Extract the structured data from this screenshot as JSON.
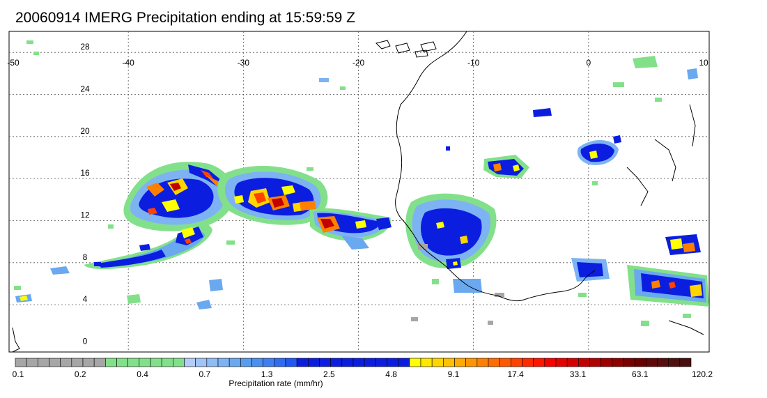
{
  "title": "20060914 IMERG Precipitation ending at 15:59:59 Z",
  "map": {
    "lon_range": [
      -50,
      10
    ],
    "lat_range": [
      -0.5,
      30
    ],
    "lon_ticks": [
      -50,
      -40,
      -30,
      -20,
      -10,
      0,
      10
    ],
    "lon_tick_labels": [
      "-50",
      "-40",
      "-30",
      "-20",
      "-10",
      "0",
      "10"
    ],
    "lat_ticks": [
      0,
      4,
      8,
      12,
      16,
      20,
      24,
      28
    ],
    "lat_tick_labels": [
      "0",
      "4",
      "8",
      "12",
      "16",
      "20",
      "24",
      "28"
    ],
    "grid": true,
    "coastline_color": "#000000"
  },
  "colorbar": {
    "title": "Precipitation rate (mm/hr)",
    "colors": [
      "#a6a6a6",
      "#a6a6a6",
      "#a6a6a6",
      "#a6a6a6",
      "#a6a6a6",
      "#a6a6a6",
      "#a6a6a6",
      "#a6a6a6",
      "#83e08a",
      "#83e08a",
      "#83e08a",
      "#83e08a",
      "#83e08a",
      "#83e08a",
      "#83e08a",
      "#b4cdf7",
      "#9fc4f5",
      "#8ebdf4",
      "#7db3f2",
      "#6aa8ef",
      "#579ced",
      "#4b8fef",
      "#3d7ff0",
      "#2f6cf2",
      "#2158f3",
      "#0b1ee0",
      "#0b1ee0",
      "#0b1ee0",
      "#0b1ee0",
      "#0b1ee0",
      "#0b1ee0",
      "#0b1ee0",
      "#0b1ee0",
      "#0b1ee0",
      "#0b1ee0",
      "#ffff00",
      "#ffe800",
      "#ffd500",
      "#ffc000",
      "#ffaa00",
      "#ff9500",
      "#ff8000",
      "#ff6d00",
      "#ff5800",
      "#ff4200",
      "#ff2a00",
      "#ff1500",
      "#f80000",
      "#e60000",
      "#d40000",
      "#c20000",
      "#b00000",
      "#9e0000",
      "#8c0000",
      "#7a0000",
      "#6a0000",
      "#600808",
      "#580c0c",
      "#501010",
      "#481010"
    ],
    "tick_labels": [
      "0.1",
      "0.2",
      "0.4",
      "0.7",
      "1.3",
      "2.5",
      "4.8",
      "9.1",
      "17.4",
      "33.1",
      "63.1",
      "120.2"
    ]
  }
}
